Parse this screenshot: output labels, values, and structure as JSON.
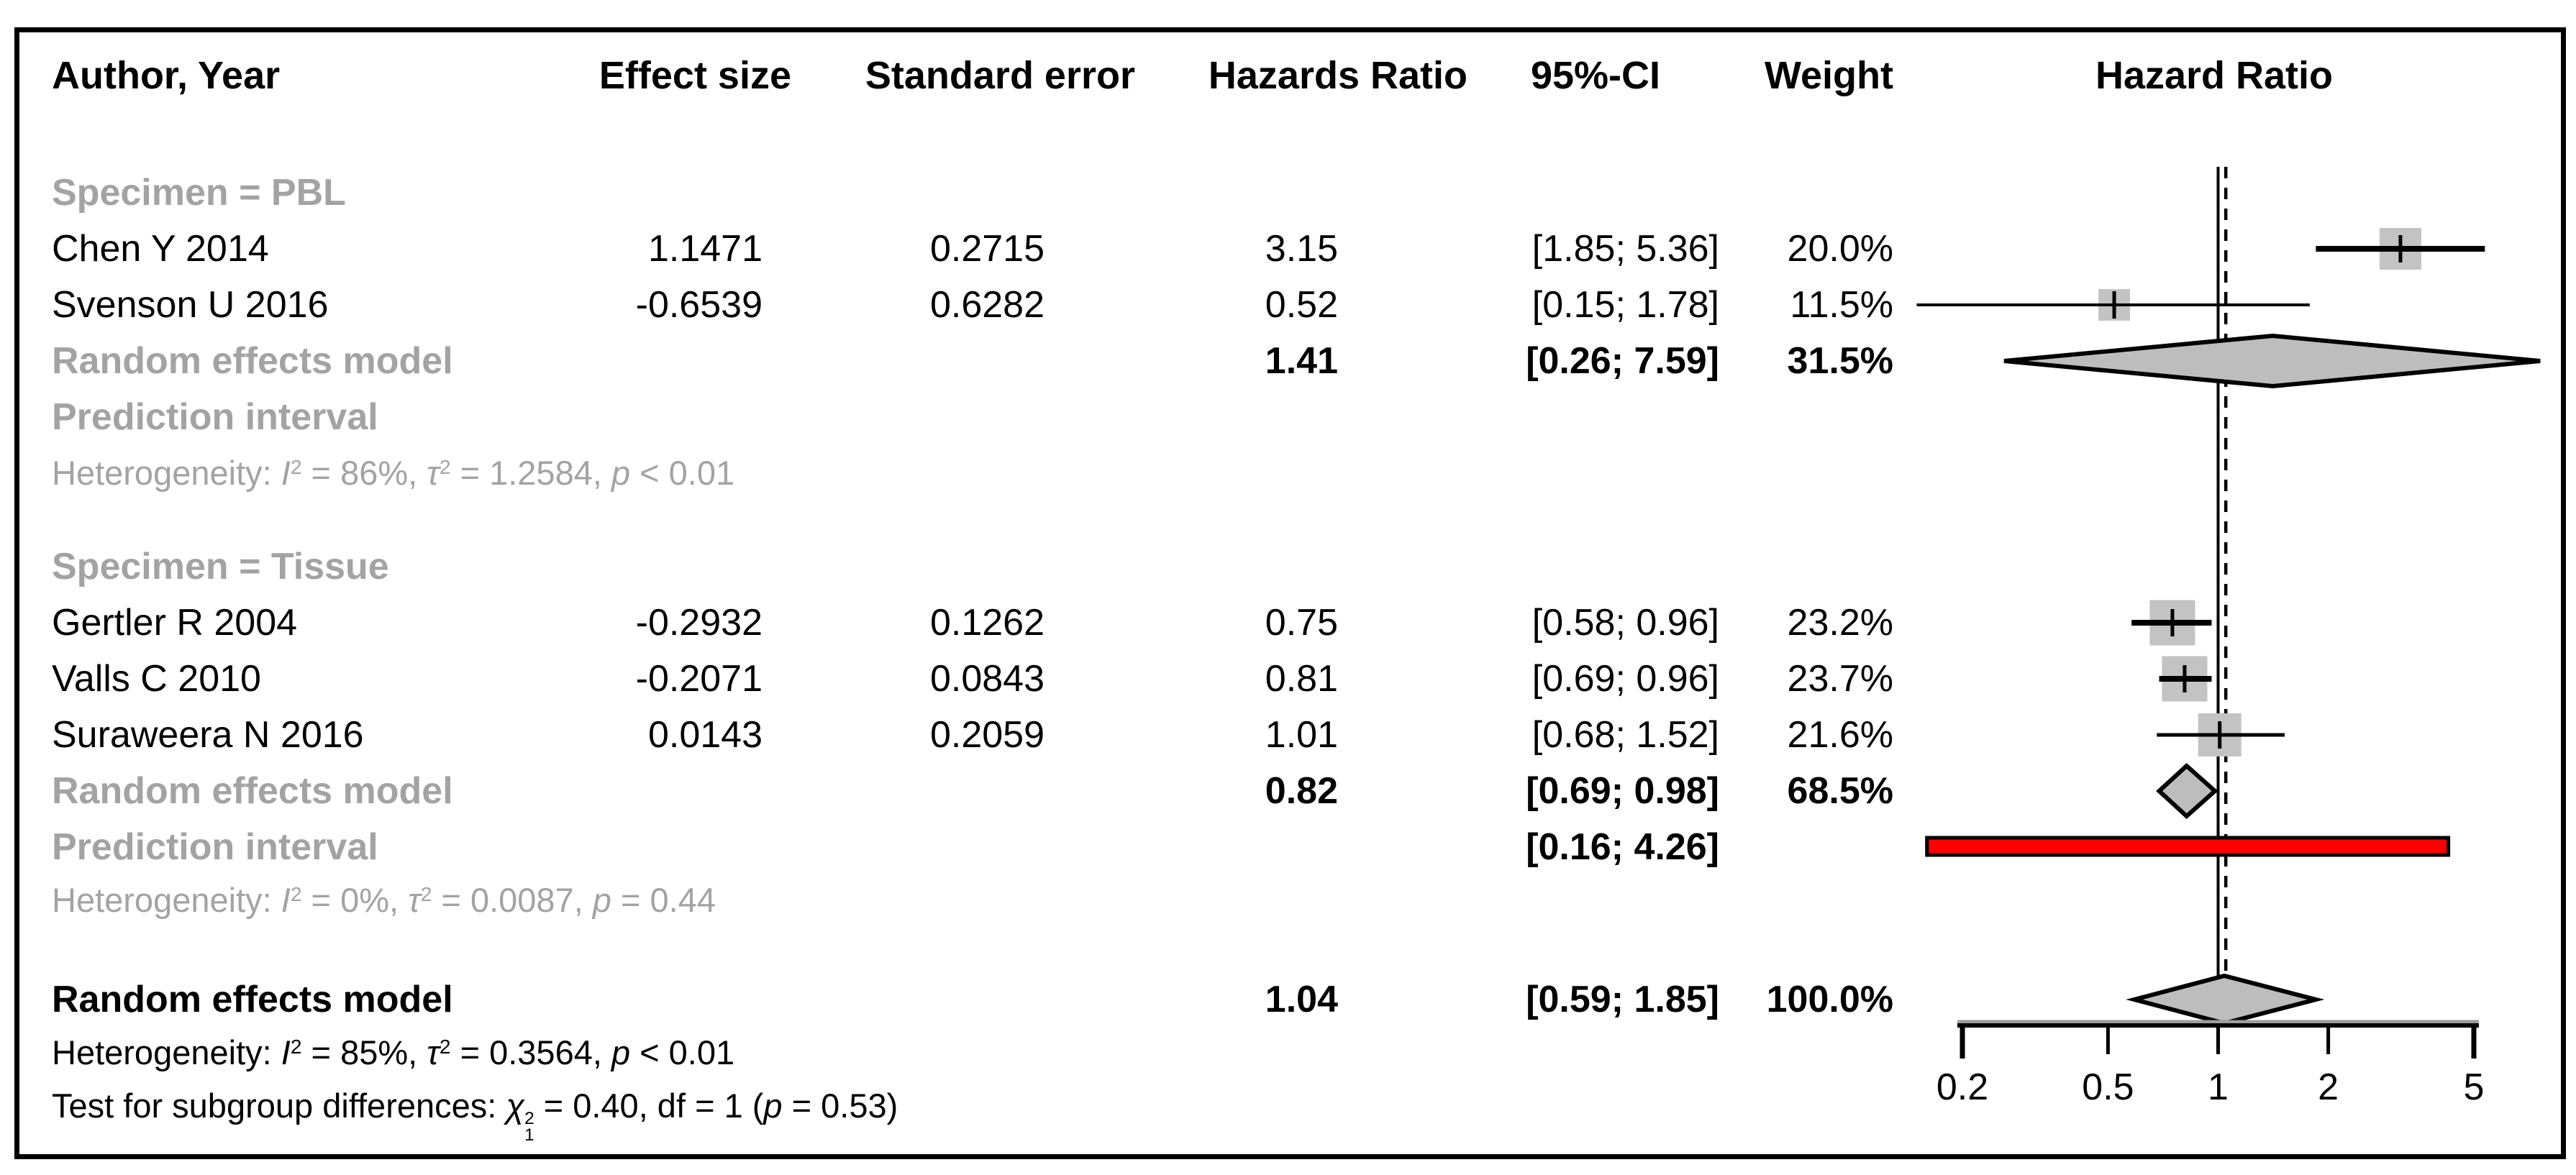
{
  "figure": {
    "columns": {
      "author": "Author, Year",
      "effect_size": "Effect size",
      "standard_error": "Standard error",
      "hazards_ratio": "Hazards Ratio",
      "ci": "95%-CI",
      "weight": "Weight",
      "plot_title": "Hazard Ratio"
    },
    "labels": {
      "pooled": "Random effects model",
      "prediction": "Prediction interval",
      "heterogeneity_prefix": "Heterogeneity:",
      "test_prefix": "Test for subgroup differences:"
    }
  },
  "chart_data": {
    "type": "forest",
    "x_scale": "log",
    "xlim": [
      0.2,
      5
    ],
    "axis_ticks": [
      "0.2",
      "0.5",
      "1",
      "2",
      "5"
    ],
    "ref_line": 1,
    "dashed_line": 1.04,
    "colors": {
      "square": "#c3c3c3",
      "diamond": "#bdbdbd",
      "prediction_bar": "#ff0000",
      "gray_text": "#a3a3a3"
    },
    "groups": [
      {
        "label": "Specimen = PBL",
        "studies": [
          {
            "author": "Chen Y 2014",
            "effect_size": 1.1471,
            "se": 0.2715,
            "hr": 3.15,
            "ci_low": 1.85,
            "ci_high": 5.36,
            "weight": 20.0,
            "ci_lw": 8
          },
          {
            "author": "Svenson U 2016",
            "effect_size": -0.6539,
            "se": 0.6282,
            "hr": 0.52,
            "ci_low": 0.15,
            "ci_high": 1.78,
            "weight": 11.5,
            "ci_lw": 4
          }
        ],
        "pooled": {
          "hr": 1.41,
          "ci_low": 0.26,
          "ci_high": 7.59,
          "weight": 31.5
        },
        "prediction_interval": null,
        "heterogeneity": {
          "i2": "86%",
          "tau2": "1.2584",
          "p": "< 0.01"
        }
      },
      {
        "label": "Specimen = Tissue",
        "studies": [
          {
            "author": "Gertler R 2004",
            "effect_size": -0.2932,
            "se": 0.1262,
            "hr": 0.75,
            "ci_low": 0.58,
            "ci_high": 0.96,
            "weight": 23.2,
            "ci_lw": 8
          },
          {
            "author": "Valls C 2010",
            "effect_size": -0.2071,
            "se": 0.0843,
            "hr": 0.81,
            "ci_low": 0.69,
            "ci_high": 0.96,
            "weight": 23.7,
            "ci_lw": 8
          },
          {
            "author": "Suraweera N 2016",
            "effect_size": 0.0143,
            "se": 0.2059,
            "hr": 1.01,
            "ci_low": 0.68,
            "ci_high": 1.52,
            "weight": 21.6,
            "ci_lw": 5
          }
        ],
        "pooled": {
          "hr": 0.82,
          "ci_low": 0.69,
          "ci_high": 0.98,
          "weight": 68.5
        },
        "prediction_interval": {
          "ci_low": 0.16,
          "ci_high": 4.26
        },
        "heterogeneity": {
          "i2": "0%",
          "tau2": "0.0087",
          "p": "= 0.44"
        }
      }
    ],
    "overall": {
      "label": "Random effects model",
      "hr": 1.04,
      "ci_low": 0.59,
      "ci_high": 1.85,
      "weight": 100.0,
      "heterogeneity": {
        "i2": "85%",
        "tau2": "0.3564",
        "p": "< 0.01"
      },
      "subgroup_test": {
        "chi2": "0.40",
        "df": "1",
        "p": "= 0.53"
      }
    }
  }
}
